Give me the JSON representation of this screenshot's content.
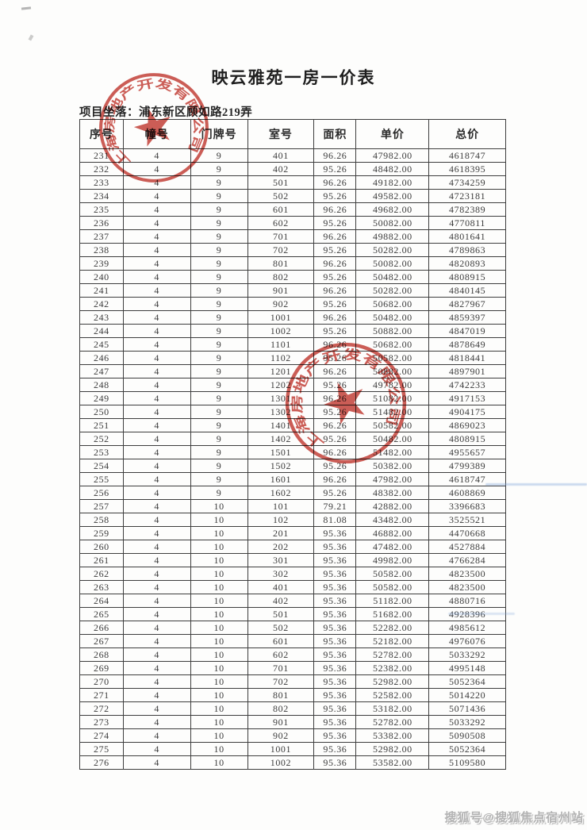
{
  "page": {
    "title": "映云雅苑一房一价表",
    "location": "项目坐落：浦东新区顾如路219弄"
  },
  "table": {
    "headers": [
      "序号",
      "幢号",
      "门牌号",
      "室号",
      "面积",
      "单价",
      "总价"
    ],
    "rows": [
      [
        "231",
        "4",
        "9",
        "401",
        "96.26",
        "47982.00",
        "4618747"
      ],
      [
        "232",
        "4",
        "9",
        "402",
        "95.26",
        "48482.00",
        "4618395"
      ],
      [
        "233",
        "4",
        "9",
        "501",
        "96.26",
        "49182.00",
        "4734259"
      ],
      [
        "234",
        "4",
        "9",
        "502",
        "95.26",
        "49582.00",
        "4723181"
      ],
      [
        "235",
        "4",
        "9",
        "601",
        "96.26",
        "49682.00",
        "4782389"
      ],
      [
        "236",
        "4",
        "9",
        "602",
        "95.26",
        "50082.00",
        "4770811"
      ],
      [
        "237",
        "4",
        "9",
        "701",
        "96.26",
        "49882.00",
        "4801641"
      ],
      [
        "238",
        "4",
        "9",
        "702",
        "95.26",
        "50282.00",
        "4789863"
      ],
      [
        "239",
        "4",
        "9",
        "801",
        "96.26",
        "50082.00",
        "4820893"
      ],
      [
        "240",
        "4",
        "9",
        "802",
        "95.26",
        "50482.00",
        "4808915"
      ],
      [
        "241",
        "4",
        "9",
        "901",
        "96.26",
        "50282.00",
        "4840145"
      ],
      [
        "242",
        "4",
        "9",
        "902",
        "95.26",
        "50682.00",
        "4827967"
      ],
      [
        "243",
        "4",
        "9",
        "1001",
        "96.26",
        "50482.00",
        "4859397"
      ],
      [
        "244",
        "4",
        "9",
        "1002",
        "95.26",
        "50882.00",
        "4847019"
      ],
      [
        "245",
        "4",
        "9",
        "1101",
        "96.26",
        "50682.00",
        "4878649"
      ],
      [
        "246",
        "4",
        "9",
        "1102",
        "95.26",
        "50582.00",
        "4818441"
      ],
      [
        "247",
        "4",
        "9",
        "1201",
        "96.26",
        "50882.00",
        "4897901"
      ],
      [
        "248",
        "4",
        "9",
        "1202",
        "95.26",
        "49782.00",
        "4742233"
      ],
      [
        "249",
        "4",
        "9",
        "1301",
        "96.26",
        "51082.00",
        "4917153"
      ],
      [
        "250",
        "4",
        "9",
        "1302",
        "95.26",
        "51482.00",
        "4904175"
      ],
      [
        "251",
        "4",
        "9",
        "1401",
        "96.26",
        "50582.00",
        "4869023"
      ],
      [
        "252",
        "4",
        "9",
        "1402",
        "95.26",
        "50482.00",
        "4808915"
      ],
      [
        "253",
        "4",
        "9",
        "1501",
        "96.26",
        "51482.00",
        "4955657"
      ],
      [
        "254",
        "4",
        "9",
        "1502",
        "95.26",
        "50382.00",
        "4799389"
      ],
      [
        "255",
        "4",
        "9",
        "1601",
        "96.26",
        "47982.00",
        "4618747"
      ],
      [
        "256",
        "4",
        "9",
        "1602",
        "95.26",
        "48382.00",
        "4608869"
      ],
      [
        "257",
        "4",
        "10",
        "101",
        "79.21",
        "42882.00",
        "3396683"
      ],
      [
        "258",
        "4",
        "10",
        "102",
        "81.08",
        "43482.00",
        "3525521"
      ],
      [
        "259",
        "4",
        "10",
        "201",
        "95.36",
        "46882.00",
        "4470668"
      ],
      [
        "260",
        "4",
        "10",
        "202",
        "95.36",
        "47482.00",
        "4527884"
      ],
      [
        "261",
        "4",
        "10",
        "301",
        "95.36",
        "49982.00",
        "4766284"
      ],
      [
        "262",
        "4",
        "10",
        "302",
        "95.36",
        "50582.00",
        "4823500"
      ],
      [
        "263",
        "4",
        "10",
        "401",
        "95.36",
        "50582.00",
        "4823500"
      ],
      [
        "264",
        "4",
        "10",
        "402",
        "95.36",
        "51182.00",
        "4880716"
      ],
      [
        "265",
        "4",
        "10",
        "501",
        "95.36",
        "51682.00",
        "4928396"
      ],
      [
        "266",
        "4",
        "10",
        "502",
        "95.36",
        "52282.00",
        "4985612"
      ],
      [
        "267",
        "4",
        "10",
        "601",
        "95.36",
        "52182.00",
        "4976076"
      ],
      [
        "268",
        "4",
        "10",
        "602",
        "95.36",
        "52782.00",
        "5033292"
      ],
      [
        "269",
        "4",
        "10",
        "701",
        "95.36",
        "52382.00",
        "4995148"
      ],
      [
        "270",
        "4",
        "10",
        "702",
        "95.36",
        "52982.00",
        "5052364"
      ],
      [
        "271",
        "4",
        "10",
        "801",
        "95.36",
        "52582.00",
        "5014220"
      ],
      [
        "272",
        "4",
        "10",
        "802",
        "95.36",
        "53182.00",
        "5071436"
      ],
      [
        "273",
        "4",
        "10",
        "901",
        "95.36",
        "52782.00",
        "5033292"
      ],
      [
        "274",
        "4",
        "10",
        "902",
        "95.36",
        "53382.00",
        "5090508"
      ],
      [
        "275",
        "4",
        "10",
        "1001",
        "95.36",
        "52982.00",
        "5052364"
      ],
      [
        "276",
        "4",
        "10",
        "1002",
        "95.36",
        "53582.00",
        "5109580"
      ]
    ]
  },
  "stamps": [
    {
      "ring_text": "上海房地产开发有限公司"
    },
    {
      "ring_text": "上海房地产开发有限公司"
    }
  ],
  "watermark": {
    "text": "搜狐号@搜狐焦点宿州站"
  },
  "colors": {
    "stamp_red": "#c23a31",
    "watermark_gray": "#b3b3b3",
    "scan_streak_blue": "#7aa0d8",
    "table_border": "#3d3d3d"
  }
}
